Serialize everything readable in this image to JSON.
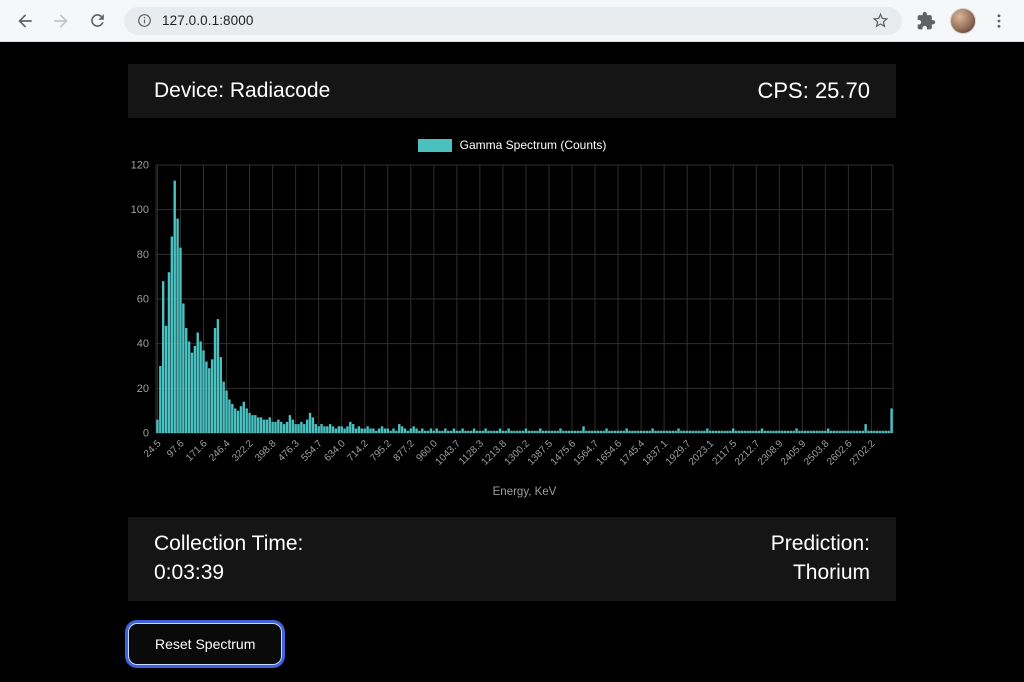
{
  "browser": {
    "url": "127.0.0.1:8000"
  },
  "header": {
    "device_label": "Device: Radiacode",
    "cps_label": "CPS: 25.70"
  },
  "chart_data": {
    "type": "bar",
    "title": "Gamma Spectrum (Counts)",
    "xlabel": "Energy, KeV",
    "ylabel": "",
    "ylim": [
      0,
      120
    ],
    "y_ticks": [
      0,
      20,
      40,
      60,
      80,
      100,
      120
    ],
    "grid": true,
    "legend_position": "top",
    "bar_color": "#4bc0c0",
    "grid_color": "#2f2f2f",
    "tick_color": "#9e9e9e",
    "x_tick_labels": [
      "24.5",
      "97.6",
      "171.6",
      "246.4",
      "322.2",
      "398.8",
      "476.3",
      "554.7",
      "634.0",
      "714.2",
      "795.2",
      "877.2",
      "960.0",
      "1043.7",
      "1128.3",
      "1213.8",
      "1300.2",
      "1387.5",
      "1475.6",
      "1564.7",
      "1654.6",
      "1745.4",
      "1837.1",
      "1929.7",
      "2023.1",
      "2117.5",
      "2212.7",
      "2308.9",
      "2405.9",
      "2503.8",
      "2602.6",
      "2702.2"
    ],
    "values": [
      6,
      30,
      68,
      48,
      72,
      88,
      113,
      96,
      83,
      58,
      47,
      41,
      36,
      39,
      45,
      41,
      37,
      32,
      29,
      33,
      47,
      51,
      34,
      23,
      19,
      15,
      13,
      11,
      10,
      12,
      14,
      11,
      9,
      8,
      8,
      7,
      7,
      6,
      6,
      7,
      5,
      5,
      6,
      5,
      4,
      5,
      8,
      6,
      4,
      4,
      5,
      4,
      6,
      9,
      7,
      4,
      3,
      4,
      3,
      3,
      4,
      3,
      2,
      3,
      3,
      2,
      3,
      5,
      4,
      2,
      3,
      2,
      2,
      3,
      2,
      2,
      1,
      2,
      3,
      2,
      2,
      1,
      2,
      1,
      4,
      3,
      2,
      1,
      2,
      3,
      2,
      1,
      2,
      1,
      1,
      2,
      1,
      2,
      1,
      1,
      2,
      1,
      1,
      2,
      1,
      1,
      2,
      1,
      1,
      1,
      2,
      1,
      1,
      1,
      2,
      1,
      1,
      1,
      1,
      2,
      1,
      1,
      2,
      1,
      1,
      1,
      1,
      1,
      2,
      1,
      1,
      1,
      1,
      2,
      1,
      1,
      1,
      1,
      1,
      1,
      2,
      1,
      1,
      1,
      1,
      1,
      1,
      1,
      3,
      1,
      1,
      1,
      1,
      1,
      1,
      1,
      2,
      1,
      1,
      1,
      1,
      1,
      1,
      2,
      1,
      1,
      1,
      1,
      1,
      1,
      1,
      1,
      2,
      1,
      1,
      1,
      1,
      1,
      1,
      1,
      1,
      2,
      1,
      1,
      1,
      1,
      1,
      1,
      1,
      1,
      1,
      2,
      1,
      1,
      1,
      1,
      1,
      1,
      1,
      1,
      2,
      1,
      1,
      1,
      1,
      1,
      1,
      1,
      1,
      1,
      2,
      1,
      1,
      1,
      1,
      1,
      1,
      1,
      1,
      1,
      1,
      1,
      2,
      1,
      1,
      1,
      1,
      1,
      1,
      1,
      1,
      1,
      1,
      2,
      1,
      1,
      1,
      1,
      1,
      1,
      1,
      1,
      1,
      1,
      1,
      1,
      4,
      1,
      1,
      1,
      1,
      1,
      1,
      1,
      1,
      11
    ]
  },
  "footer": {
    "collection_time_label": "Collection Time:",
    "collection_time_value": "0:03:39",
    "prediction_label": "Prediction:",
    "prediction_value": "Thorium"
  },
  "actions": {
    "reset_label": "Reset Spectrum"
  },
  "colors": {
    "bar_accent": "#4bc0c0",
    "focus_ring": "#3e63dd",
    "panel_bg": "#151516"
  }
}
